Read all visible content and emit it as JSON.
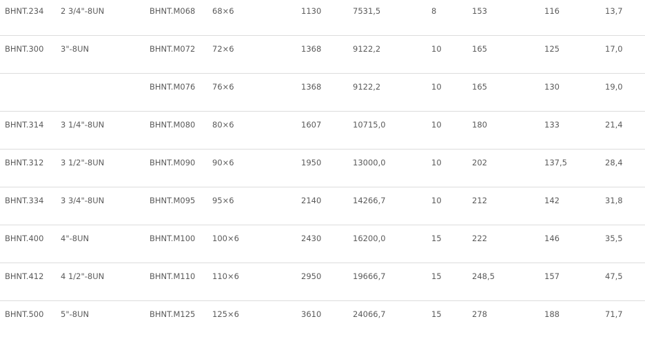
{
  "table": {
    "rows": [
      [
        "BHNT.234",
        "2 3/4\"-8UN",
        "BHNT.M068",
        "68×6",
        "1130",
        "7531,5",
        "8",
        "153",
        "116",
        "13,7"
      ],
      [
        "BHNT.300",
        "3\"-8UN",
        "BHNT.M072",
        "72×6",
        "1368",
        "9122,2",
        "10",
        "165",
        "125",
        "17,0"
      ],
      [
        "",
        "",
        "BHNT.M076",
        "76×6",
        "1368",
        "9122,2",
        "10",
        "165",
        "130",
        "19,0"
      ],
      [
        "BHNT.314",
        "3 1/4\"-8UN",
        "BHNT.M080",
        "80×6",
        "1607",
        "10715,0",
        "10",
        "180",
        "133",
        "21,4"
      ],
      [
        "BHNT.312",
        "3 1/2\"-8UN",
        "BHNT.M090",
        "90×6",
        "1950",
        "13000,0",
        "10",
        "202",
        "137,5",
        "28,4"
      ],
      [
        "BHNT.334",
        "3 3/4\"-8UN",
        "BHNT.M095",
        "95×6",
        "2140",
        "14266,7",
        "10",
        "212",
        "142",
        "31,8"
      ],
      [
        "BHNT.400",
        "4\"-8UN",
        "BHNT.M100",
        "100×6",
        "2430",
        "16200,0",
        "15",
        "222",
        "146",
        "35,5"
      ],
      [
        "BHNT.412",
        "4 1/2\"-8UN",
        "BHNT.M110",
        "110×6",
        "2950",
        "19666,7",
        "15",
        "248,5",
        "157",
        "47,5"
      ],
      [
        "BHNT.500",
        "5\"-8UN",
        "BHNT.M125",
        "125×6",
        "3610",
        "24066,7",
        "15",
        "278",
        "188",
        "71,7"
      ]
    ]
  }
}
